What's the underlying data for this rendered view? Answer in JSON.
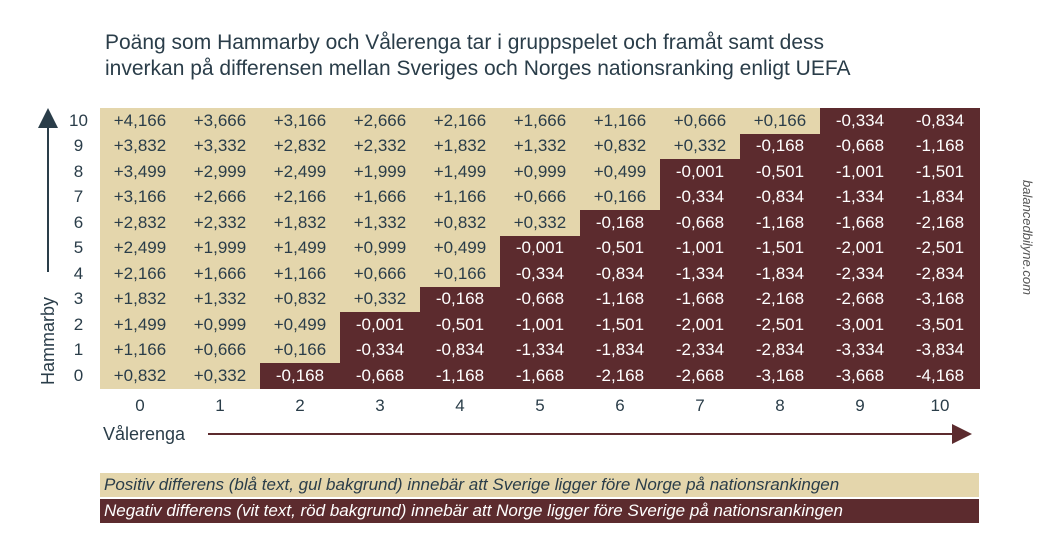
{
  "title_lines": [
    "Poäng som Hammarby och Vålerenga tar i gruppspelet och framåt samt dess",
    "inverkan på differensen mellan Sveriges och Norges nationsranking enligt UEFA"
  ],
  "colors": {
    "positive_bg": "#e4d6ac",
    "positive_text": "#2a3d49",
    "negative_bg": "#5c2b2e",
    "negative_text": "#ffffff"
  },
  "chart_data": {
    "type": "heatmap",
    "title": "Poäng som Hammarby och Vålerenga tar i gruppspelet och framåt samt dess inverkan på differensen mellan Sveriges och Norges nationsranking enligt UEFA",
    "xlabel": "Vålerenga",
    "ylabel": "Hammarby",
    "x": [
      "0",
      "1",
      "2",
      "3",
      "4",
      "5",
      "6",
      "7",
      "8",
      "9",
      "10"
    ],
    "y": [
      "10",
      "9",
      "8",
      "7",
      "6",
      "5",
      "4",
      "3",
      "2",
      "1",
      "0"
    ],
    "values": [
      [
        "+4,166",
        "+3,666",
        "+3,166",
        "+2,666",
        "+2,166",
        "+1,666",
        "+1,166",
        "+0,666",
        "+0,166",
        "-0,334",
        "-0,834"
      ],
      [
        "+3,832",
        "+3,332",
        "+2,832",
        "+2,332",
        "+1,832",
        "+1,332",
        "+0,832",
        "+0,332",
        "-0,168",
        "-0,668",
        "-1,168"
      ],
      [
        "+3,499",
        "+2,999",
        "+2,499",
        "+1,999",
        "+1,499",
        "+0,999",
        "+0,499",
        "-0,001",
        "-0,501",
        "-1,001",
        "-1,501"
      ],
      [
        "+3,166",
        "+2,666",
        "+2,166",
        "+1,666",
        "+1,166",
        "+0,666",
        "+0,166",
        "-0,334",
        "-0,834",
        "-1,334",
        "-1,834"
      ],
      [
        "+2,832",
        "+2,332",
        "+1,832",
        "+1,332",
        "+0,832",
        "+0,332",
        "-0,168",
        "-0,668",
        "-1,168",
        "-1,668",
        "-2,168"
      ],
      [
        "+2,499",
        "+1,999",
        "+1,499",
        "+0,999",
        "+0,499",
        "-0,001",
        "-0,501",
        "-1,001",
        "-1,501",
        "-2,001",
        "-2,501"
      ],
      [
        "+2,166",
        "+1,666",
        "+1,166",
        "+0,666",
        "+0,166",
        "-0,334",
        "-0,834",
        "-1,334",
        "-1,834",
        "-2,334",
        "-2,834"
      ],
      [
        "+1,832",
        "+1,332",
        "+0,832",
        "+0,332",
        "-0,168",
        "-0,668",
        "-1,168",
        "-1,668",
        "-2,168",
        "-2,668",
        "-3,168"
      ],
      [
        "+1,499",
        "+0,999",
        "+0,499",
        "-0,001",
        "-0,501",
        "-1,001",
        "-1,501",
        "-2,001",
        "-2,501",
        "-3,001",
        "-3,501"
      ],
      [
        "+1,166",
        "+0,666",
        "+0,166",
        "-0,334",
        "-0,834",
        "-1,334",
        "-1,834",
        "-2,334",
        "-2,834",
        "-3,334",
        "-3,834"
      ],
      [
        "+0,832",
        "+0,332",
        "-0,168",
        "-0,668",
        "-1,168",
        "-1,668",
        "-2,168",
        "-2,668",
        "-3,168",
        "-3,668",
        "-4,168"
      ]
    ]
  },
  "legend": {
    "positive": "Positiv differens (blå text, gul bakgrund) innebär att Sverige ligger före Norge på nationsrankingen",
    "negative": "Negativ differens (vit text, röd bakgrund) innebär att Norge ligger före Sverige på nationsrankingen"
  },
  "watermark": "balancedbilyne.com"
}
